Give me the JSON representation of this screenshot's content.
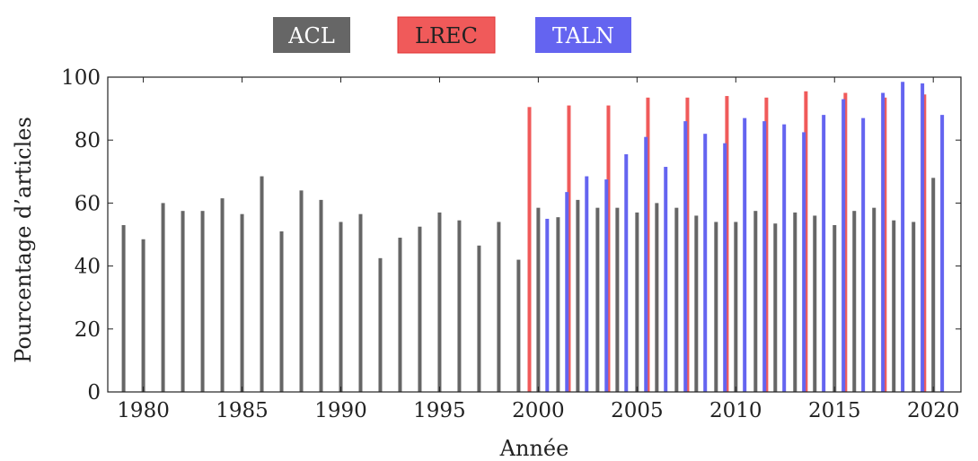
{
  "chart_data": {
    "type": "bar",
    "xlabel": "Année",
    "ylabel": "Pourcentage d’articles",
    "ylim": [
      0,
      100
    ],
    "xlim": [
      1978.2,
      2021.4
    ],
    "yticks": [
      0,
      20,
      40,
      60,
      80,
      100
    ],
    "xticks": [
      1980,
      1985,
      1990,
      1995,
      2000,
      2005,
      2010,
      2015,
      2020
    ],
    "grid": false,
    "legend_position": "top",
    "series": [
      {
        "name": "ACL",
        "color": "#666666",
        "points": [
          [
            1979,
            53
          ],
          [
            1980,
            48.5
          ],
          [
            1981,
            60
          ],
          [
            1982,
            57.5
          ],
          [
            1983,
            57.5
          ],
          [
            1984,
            61.5
          ],
          [
            1985,
            56.5
          ],
          [
            1986,
            68.5
          ],
          [
            1987,
            51
          ],
          [
            1988,
            64
          ],
          [
            1989,
            61
          ],
          [
            1990,
            54
          ],
          [
            1991,
            56.5
          ],
          [
            1992,
            42.5
          ],
          [
            1993,
            49
          ],
          [
            1994,
            52.5
          ],
          [
            1995,
            57
          ],
          [
            1996,
            54.5
          ],
          [
            1997,
            46.5
          ],
          [
            1998,
            54
          ],
          [
            1999,
            42
          ],
          [
            2000,
            58.5
          ],
          [
            2001,
            55.5
          ],
          [
            2002,
            61
          ],
          [
            2003,
            58.5
          ],
          [
            2004,
            58.5
          ],
          [
            2005,
            57
          ],
          [
            2006,
            60
          ],
          [
            2007,
            58.5
          ],
          [
            2008,
            56
          ],
          [
            2009,
            54
          ],
          [
            2010,
            54
          ],
          [
            2011,
            57.5
          ],
          [
            2012,
            53.5
          ],
          [
            2013,
            57
          ],
          [
            2014,
            56
          ],
          [
            2015,
            53
          ],
          [
            2016,
            57.5
          ],
          [
            2017,
            58.5
          ],
          [
            2018,
            54.5
          ],
          [
            2019,
            54
          ],
          [
            2020,
            68
          ]
        ]
      },
      {
        "name": "LREC",
        "color": "#f05a5a",
        "points": [
          [
            2000,
            90.5
          ],
          [
            2002,
            91
          ],
          [
            2004,
            91
          ],
          [
            2006,
            93.5
          ],
          [
            2008,
            93.5
          ],
          [
            2010,
            94
          ],
          [
            2012,
            93.5
          ],
          [
            2014,
            95.5
          ],
          [
            2016,
            95
          ],
          [
            2018,
            93.5
          ],
          [
            2020,
            94.5
          ]
        ]
      },
      {
        "name": "TALN",
        "color": "#6464f0",
        "points": [
          [
            2000,
            55
          ],
          [
            2001,
            63.5
          ],
          [
            2002,
            68.5
          ],
          [
            2003,
            67.5
          ],
          [
            2004,
            75.5
          ],
          [
            2005,
            81
          ],
          [
            2006,
            71.5
          ],
          [
            2007,
            86
          ],
          [
            2008,
            82
          ],
          [
            2009,
            79
          ],
          [
            2010,
            87
          ],
          [
            2011,
            86
          ],
          [
            2012,
            85
          ],
          [
            2013,
            82.5
          ],
          [
            2014,
            88
          ],
          [
            2015,
            93
          ],
          [
            2016,
            87
          ],
          [
            2017,
            95
          ],
          [
            2018,
            98.5
          ],
          [
            2019,
            98
          ],
          [
            2020,
            88
          ]
        ]
      }
    ]
  }
}
